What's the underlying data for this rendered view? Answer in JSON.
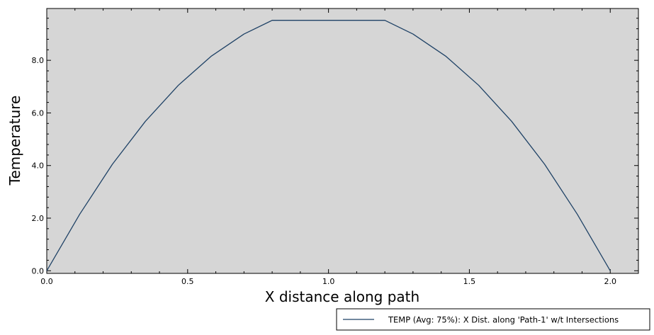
{
  "chart_data": {
    "type": "line",
    "title": "",
    "xlabel": "X distance along path",
    "ylabel": "Temperature",
    "xlim": [
      0.0,
      2.1
    ],
    "ylim": [
      -0.1,
      9.97
    ],
    "x_ticks": [
      {
        "value": 0.0,
        "label": "0.0"
      },
      {
        "value": 0.5,
        "label": "0.5"
      },
      {
        "value": 1.0,
        "label": "1.0"
      },
      {
        "value": 1.5,
        "label": "1.5"
      },
      {
        "value": 2.0,
        "label": "2.0"
      }
    ],
    "y_ticks": [
      {
        "value": 0.0,
        "label": "0.0"
      },
      {
        "value": 2.0,
        "label": "2.0"
      },
      {
        "value": 4.0,
        "label": "4.0"
      },
      {
        "value": 6.0,
        "label": "6.0"
      },
      {
        "value": 8.0,
        "label": "8.0"
      }
    ],
    "minor_ticks_per_major": 5,
    "grid": false,
    "legend_position": "bottom-right, below plot",
    "plot_background": "#d6d6d6",
    "series": [
      {
        "name": "TEMP (Avg: 75%): X Dist. along 'Path-1' w/t Intersections",
        "color": "#1f4266",
        "x": [
          0.0,
          0.117,
          0.233,
          0.35,
          0.467,
          0.583,
          0.7,
          0.8,
          0.9,
          1.0,
          1.1,
          1.2,
          1.3,
          1.417,
          1.533,
          1.65,
          1.767,
          1.883,
          2.0
        ],
        "y": [
          0.0,
          2.15,
          4.05,
          5.68,
          7.05,
          8.15,
          9.0,
          9.52,
          9.52,
          9.52,
          9.52,
          9.52,
          9.0,
          8.15,
          7.05,
          5.68,
          4.05,
          2.15,
          0.0
        ]
      }
    ]
  }
}
